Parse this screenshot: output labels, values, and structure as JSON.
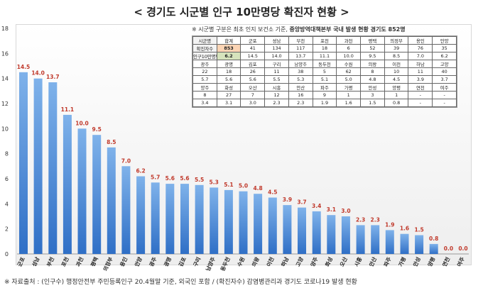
{
  "title": "< 경기도 시군별 인구 10만명당 확진자 현황 >",
  "source": "※ 자료출처 : (인구수) 행정안전부 주민등록인구 20.4월말 기준, 외국인 포함 / (확진자수) 감염병관리과 경기도 코로나19 발생 현황",
  "colors": {
    "bar_top": "#7fb2ea",
    "bar_bottom": "#2f6fc6",
    "label": "#c0392b"
  },
  "chart_data": {
    "type": "bar",
    "title": "경기도 시군별 인구 10만명당 확진자 현황",
    "categories": [
      "군포",
      "성남",
      "부천",
      "포천",
      "과천",
      "평택",
      "의정부",
      "용인",
      "안양",
      "광주",
      "광명",
      "김포",
      "구리",
      "남양주",
      "동두천",
      "수원",
      "의왕",
      "이천",
      "하남",
      "고양",
      "양주",
      "화성",
      "오산",
      "시흥",
      "안산",
      "파주",
      "가평",
      "안성",
      "양평",
      "연천",
      "여주"
    ],
    "values": [
      14.5,
      14.0,
      13.7,
      11.1,
      10.0,
      9.5,
      8.5,
      7.0,
      6.2,
      5.7,
      5.6,
      5.6,
      5.5,
      5.3,
      5.1,
      5.0,
      4.8,
      4.5,
      3.9,
      3.7,
      3.4,
      3.1,
      3.0,
      2.3,
      2.3,
      1.9,
      1.6,
      1.5,
      0.8,
      0.0,
      0.0
    ],
    "value_labels": [
      "14.5",
      "14.0",
      "13.7",
      "11.1",
      "10.0",
      "9.5",
      "8.5",
      "7.0",
      "6.2",
      "5.7",
      "5.6",
      "5.6",
      "5.5",
      "5.3",
      "5.1",
      "5.0",
      "4.8",
      "4.5",
      "3.9",
      "3.7",
      "3.4",
      "3.1",
      "3.0",
      "2.3",
      "2.3",
      "1.9",
      "1.6",
      "1.5",
      "0.8",
      "0.0",
      "0.0"
    ],
    "ylim": [
      0,
      18
    ],
    "yticks": [
      "0",
      "2",
      "4",
      "6",
      "8",
      "10",
      "12",
      "14",
      "16",
      "18"
    ],
    "xlabel": "",
    "ylabel": "",
    "grid": false
  },
  "table": {
    "note_prefix": "※ 시군별 구분은 최초 인지 보건소 기준,",
    "note_bold": "중앙방역대책본부 국내 발생 현황 경기도 852명",
    "rows": [
      [
        "시군명",
        "합계",
        "군포",
        "성남",
        "부천",
        "포천",
        "과천",
        "평택",
        "의정부",
        "용인",
        "안양"
      ],
      [
        "확진자수",
        "853",
        "41",
        "134",
        "117",
        "18",
        "6",
        "52",
        "39",
        "76",
        "35"
      ],
      [
        "인구10만명당",
        "6.2",
        "14.5",
        "14.0",
        "13.7",
        "11.1",
        "10.0",
        "9.5",
        "8.5",
        "7.0",
        "6.2"
      ],
      [
        "광주",
        "광명",
        "김포",
        "구리",
        "남양주",
        "동두천",
        "수원",
        "의왕",
        "이천",
        "하남",
        "고양"
      ],
      [
        "22",
        "18",
        "26",
        "11",
        "38",
        "5",
        "62",
        "8",
        "10",
        "11",
        "40"
      ],
      [
        "5.7",
        "5.6",
        "5.6",
        "5.5",
        "5.3",
        "5.1",
        "5.0",
        "4.8",
        "4.5",
        "3.9",
        "3.7"
      ],
      [
        "양주",
        "화성",
        "오산",
        "시흥",
        "안산",
        "파주",
        "가평",
        "안성",
        "양평",
        "연천",
        "여주"
      ],
      [
        "8",
        "27",
        "7",
        "12",
        "16",
        "9",
        "1",
        "3",
        "1",
        "-",
        "-"
      ],
      [
        "3.4",
        "3.1",
        "3.0",
        "2.3",
        "2.3",
        "1.9",
        "1.6",
        "1.5",
        "0.8",
        "-",
        "-"
      ]
    ]
  }
}
